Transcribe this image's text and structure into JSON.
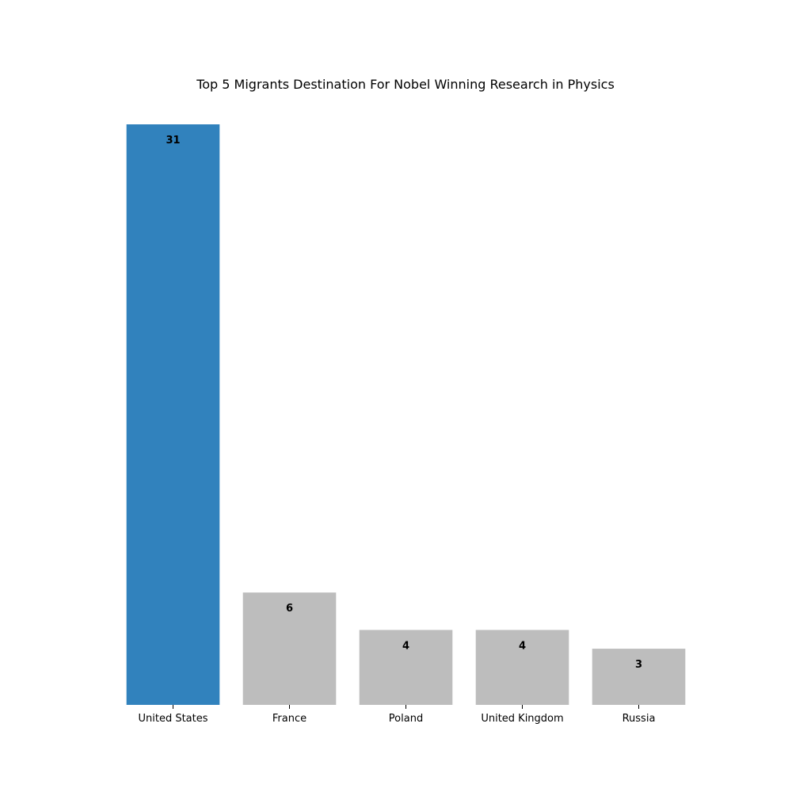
{
  "chart_data": {
    "type": "bar",
    "title": "Top 5 Migrants Destination For Nobel Winning Research in Physics",
    "xlabel": "",
    "ylabel": "",
    "categories": [
      "United States",
      "France",
      "Poland",
      "United Kingdom",
      "Russia"
    ],
    "values": [
      31,
      6,
      4,
      4,
      3
    ],
    "ylim": [
      0,
      31
    ],
    "bar_colors": [
      "#3182bd",
      "#bdbdbd",
      "#bdbdbd",
      "#bdbdbd",
      "#bdbdbd"
    ],
    "highlight_color": "#3182bd",
    "default_color": "#bdbdbd",
    "grid": false,
    "axes_spines": false,
    "y_ticks_visible": false
  }
}
